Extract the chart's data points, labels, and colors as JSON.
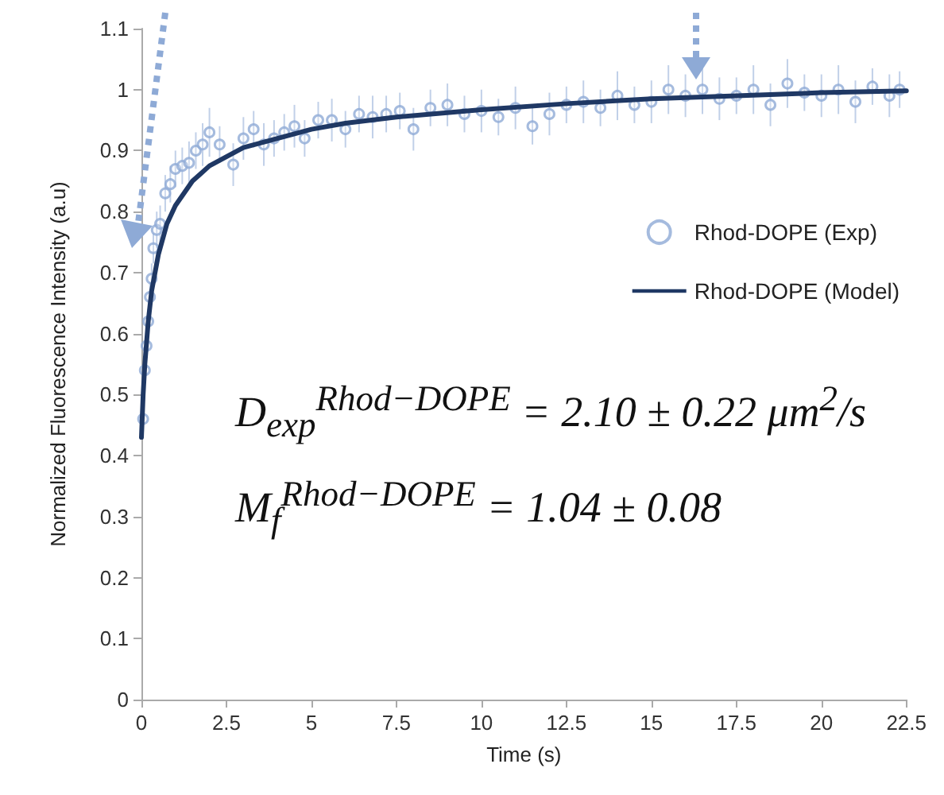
{
  "chart_data": {
    "type": "scatter",
    "xlabel": "Time (s)",
    "ylabel": "Normalized Fluorescence Intensity (a.u)",
    "xlim": [
      0,
      22.5
    ],
    "ylim": [
      0,
      1.1
    ],
    "xticks": [
      0,
      2.5,
      5,
      7.5,
      10,
      12.5,
      15,
      17.5,
      20,
      22.5
    ],
    "yticks": [
      0,
      0.1,
      0.2,
      0.3,
      0.4,
      0.5,
      0.6,
      0.7,
      0.8,
      0.9,
      1,
      1.1
    ],
    "grid": false,
    "legend": "right",
    "series": [
      {
        "name": "Rhod-DOPE (Exp)",
        "marker": "circle",
        "color": "#8eaad6",
        "x": [
          0.05,
          0.1,
          0.15,
          0.2,
          0.25,
          0.3,
          0.35,
          0.45,
          0.55,
          0.7,
          0.85,
          1.0,
          1.2,
          1.4,
          1.6,
          1.8,
          2.0,
          2.3,
          2.7,
          3.0,
          3.3,
          3.6,
          3.9,
          4.2,
          4.5,
          4.8,
          5.2,
          5.6,
          6.0,
          6.4,
          6.8,
          7.2,
          7.6,
          8.0,
          8.5,
          9.0,
          9.5,
          10.0,
          10.5,
          11.0,
          11.5,
          12.0,
          12.5,
          13.0,
          13.5,
          14.0,
          14.5,
          15.0,
          15.5,
          16.0,
          16.5,
          17.0,
          17.5,
          18.0,
          18.5,
          19.0,
          19.5,
          20.0,
          20.5,
          21.0,
          21.5,
          22.0,
          22.3
        ],
        "values": [
          0.46,
          0.54,
          0.58,
          0.62,
          0.66,
          0.69,
          0.74,
          0.77,
          0.78,
          0.83,
          0.845,
          0.87,
          0.875,
          0.88,
          0.9,
          0.91,
          0.93,
          0.91,
          0.877,
          0.92,
          0.935,
          0.91,
          0.92,
          0.93,
          0.94,
          0.92,
          0.95,
          0.95,
          0.935,
          0.96,
          0.955,
          0.96,
          0.965,
          0.935,
          0.97,
          0.975,
          0.96,
          0.965,
          0.955,
          0.97,
          0.94,
          0.96,
          0.975,
          0.98,
          0.97,
          0.99,
          0.975,
          0.98,
          1.0,
          0.99,
          1.0,
          0.985,
          0.99,
          1.0,
          0.975,
          1.01,
          0.995,
          0.99,
          1.0,
          0.98,
          1.005,
          0.99,
          1.0
        ],
        "errors": [
          0.02,
          0.02,
          0.02,
          0.02,
          0.025,
          0.025,
          0.025,
          0.03,
          0.03,
          0.03,
          0.03,
          0.03,
          0.03,
          0.035,
          0.03,
          0.035,
          0.04,
          0.03,
          0.035,
          0.035,
          0.03,
          0.035,
          0.03,
          0.03,
          0.035,
          0.03,
          0.03,
          0.035,
          0.03,
          0.03,
          0.035,
          0.03,
          0.03,
          0.035,
          0.03,
          0.035,
          0.03,
          0.035,
          0.03,
          0.035,
          0.03,
          0.035,
          0.03,
          0.035,
          0.03,
          0.04,
          0.03,
          0.035,
          0.04,
          0.035,
          0.04,
          0.035,
          0.03,
          0.04,
          0.035,
          0.04,
          0.03,
          0.035,
          0.04,
          0.035,
          0.03,
          0.035,
          0.03
        ]
      },
      {
        "name": "Rhod-DOPE (Model)",
        "type": "line",
        "marker": "none",
        "line_style": "solid",
        "color": "#1f3864",
        "x": [
          0,
          0.05,
          0.1,
          0.2,
          0.3,
          0.5,
          0.75,
          1,
          1.5,
          2,
          2.5,
          3,
          4,
          5,
          6,
          7.5,
          10,
          12.5,
          15,
          17.5,
          20,
          22.5
        ],
        "values": [
          0.43,
          0.5,
          0.55,
          0.62,
          0.67,
          0.73,
          0.78,
          0.81,
          0.85,
          0.875,
          0.89,
          0.905,
          0.92,
          0.935,
          0.945,
          0.955,
          0.967,
          0.977,
          0.985,
          0.99,
          0.995,
          0.998
        ]
      }
    ],
    "annotations": [
      "D$_{exp}$$^{Rhod−DOPE}$ = 2.10 ± 0.22 μm$^{2}$/s",
      "M$_{f}$$^{Rhod−DOPE}$ = 1.04 ± 0.08"
    ]
  }
}
